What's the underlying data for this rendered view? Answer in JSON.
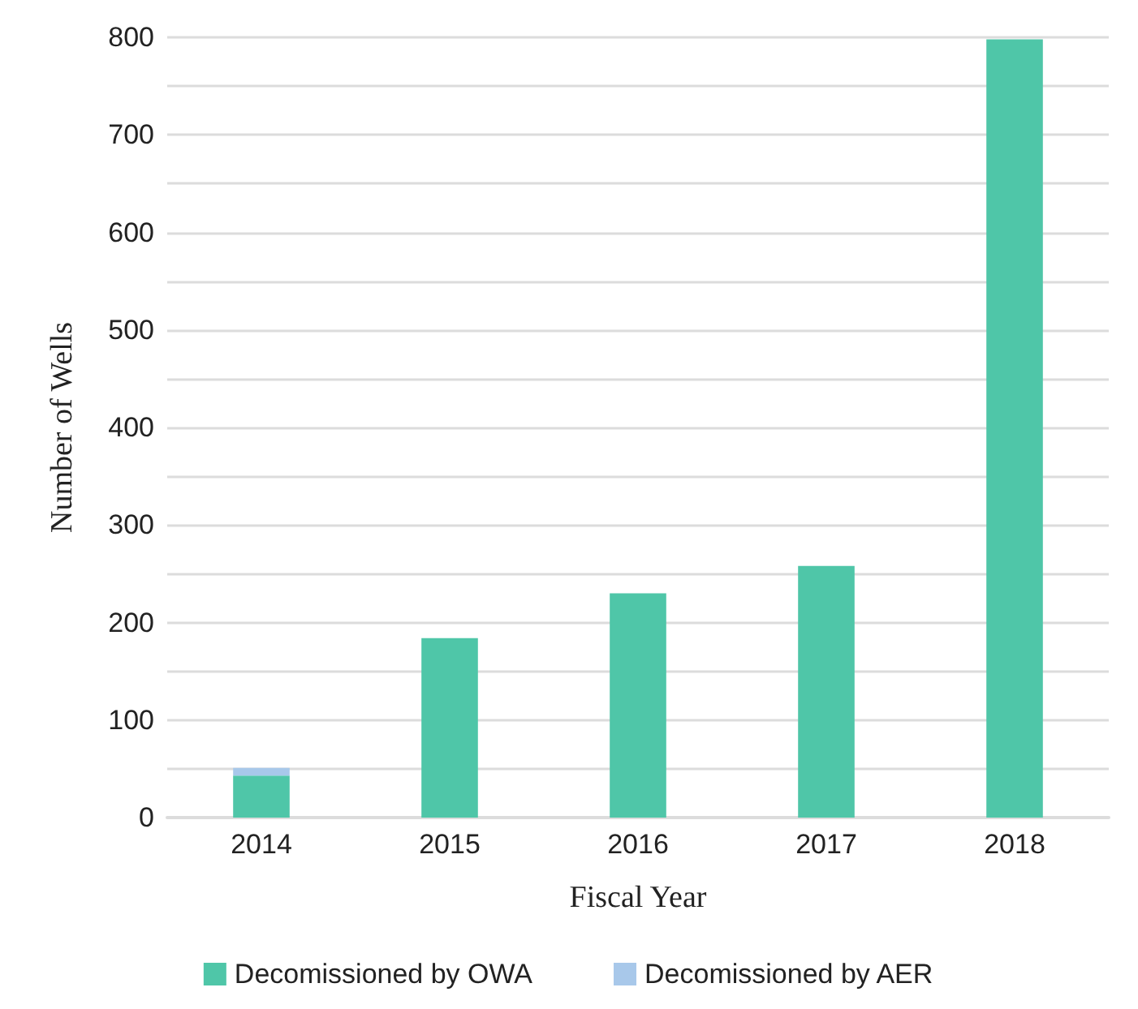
{
  "chart_data": {
    "type": "bar",
    "stacked": true,
    "xlabel": "Fiscal Year",
    "ylabel": "Number of Wells",
    "categories": [
      "2014",
      "2015",
      "2016",
      "2017",
      "2018"
    ],
    "series": [
      {
        "name": "Decomissioned by OWA",
        "color": "#4fc6a8",
        "values": [
          43,
          184,
          230,
          258,
          798
        ]
      },
      {
        "name": "Decomissioned by AER",
        "color": "#a8c8ea",
        "values": [
          8,
          0,
          0,
          0,
          0
        ]
      }
    ],
    "ylim": [
      0,
      800
    ],
    "yticks": [
      0,
      {
        "value": 50,
        "label": null
      },
      100,
      {
        "value": 150,
        "label": null
      },
      200,
      {
        "value": 250,
        "label": null
      },
      300,
      {
        "value": 350,
        "label": null
      },
      400,
      {
        "value": 450,
        "label": null
      },
      500,
      {
        "value": 550,
        "label": null
      },
      600,
      {
        "value": 650,
        "label": null
      },
      700,
      {
        "value": 750,
        "label": null
      },
      800
    ],
    "grid": "y",
    "legend": "bottom"
  }
}
